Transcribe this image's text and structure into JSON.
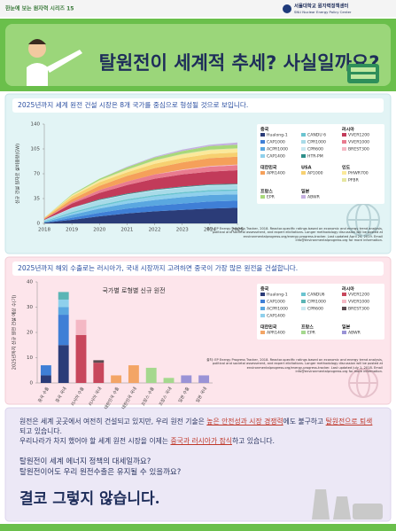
{
  "header": {
    "series": "한눈에 보는 원자력 시리즈 15",
    "org": "서울대학교 원자력정책센터",
    "org_en": "SNU Nuclear Energy Policy Center"
  },
  "title": "탈원전이 세계적 추세? 사실일까요?",
  "chart_data": [
    {
      "type": "area",
      "stacked": true,
      "headline": "2025년까지 세계 원전 건설 시장은 8개 국가를 중심으로 형성될 것으로 보입니다.",
      "ylabel": "신규 건설 원자로 설비용량(GW)",
      "x": [
        2018,
        2019,
        2020,
        2021,
        2022,
        2023,
        2024,
        2025
      ],
      "xlim": [
        2018,
        2025
      ],
      "xticks": [
        2018,
        2019,
        2020,
        2021,
        2022,
        2023,
        2024,
        2025
      ],
      "ylim": [
        0,
        140
      ],
      "yticks": [
        0,
        35,
        70,
        105,
        140
      ],
      "series": [
        {
          "name": "Hualong-1",
          "group": "중국",
          "color": "#2b3c78",
          "values": [
            1,
            5,
            10,
            14,
            17,
            19,
            21,
            22
          ]
        },
        {
          "name": "CAP1000",
          "group": "중국",
          "color": "#3f7fd6",
          "values": [
            0,
            3,
            5,
            7,
            8,
            9,
            10,
            10
          ]
        },
        {
          "name": "ACPR1000",
          "group": "중국",
          "color": "#5aa7e0",
          "values": [
            1,
            4,
            6,
            7,
            8,
            9,
            9,
            9
          ]
        },
        {
          "name": "CAP1400",
          "group": "중국",
          "color": "#8fd0ec",
          "values": [
            0,
            2,
            3,
            4,
            5,
            5,
            5,
            5
          ]
        },
        {
          "name": "CANDU 6",
          "group": "중국",
          "color": "#6bc4d0",
          "values": [
            1,
            2,
            2,
            2,
            2,
            2,
            2,
            2
          ]
        },
        {
          "name": "CPR1000",
          "group": "중국",
          "color": "#a8dbe8",
          "values": [
            2,
            5,
            6,
            6,
            6,
            6,
            6,
            6
          ]
        },
        {
          "name": "CPR600",
          "group": "중국",
          "color": "#c9e7f0",
          "values": [
            0,
            1,
            1,
            1,
            1,
            1,
            1,
            1
          ]
        },
        {
          "name": "HTR-PM",
          "group": "중국",
          "color": "#2e8f8a",
          "values": [
            0,
            0,
            1,
            1,
            1,
            1,
            1,
            1
          ]
        },
        {
          "name": "VVER1200",
          "group": "러시아",
          "color": "#c23b5a",
          "values": [
            1,
            6,
            9,
            12,
            15,
            17,
            18,
            19
          ]
        },
        {
          "name": "VVER1000",
          "group": "러시아",
          "color": "#e97b8f",
          "values": [
            0,
            2,
            4,
            5,
            6,
            6,
            7,
            7
          ]
        },
        {
          "name": "BREST300",
          "group": "러시아",
          "color": "#f4b8c4",
          "values": [
            0,
            0,
            0,
            0,
            0,
            1,
            1,
            1
          ]
        },
        {
          "name": "APR1400",
          "group": "대한민국",
          "color": "#f5a05a",
          "values": [
            1,
            4,
            6,
            8,
            9,
            10,
            11,
            11
          ]
        },
        {
          "name": "AP1000",
          "group": "USA",
          "color": "#f7d070",
          "values": [
            1,
            4,
            5,
            5,
            6,
            6,
            6,
            6
          ]
        },
        {
          "name": "PHWR700",
          "group": "인도",
          "color": "#fbe99a",
          "values": [
            0,
            1,
            2,
            3,
            4,
            5,
            5,
            5
          ]
        },
        {
          "name": "PFBR",
          "group": "인도",
          "color": "#e6e6a0",
          "values": [
            0,
            1,
            1,
            1,
            1,
            1,
            1,
            1
          ]
        },
        {
          "name": "EPR",
          "group": "프랑스",
          "color": "#a8d87a",
          "values": [
            0,
            1,
            2,
            3,
            4,
            4,
            5,
            5
          ]
        },
        {
          "name": "ABWR",
          "group": "일본",
          "color": "#c5b0e0",
          "values": [
            0,
            0,
            0,
            1,
            1,
            2,
            2,
            3
          ]
        }
      ],
      "source": "출처: EP Energy Progress Tracker, 2018. Reactor-specific ratings based on economic and energy trend analysis, political and societal assessment, and expert elicitations. Longer methodology discussion will be posted at environmentalprogress.org/energy-progress-tracker. Last updated April 24, 2019. Email info@environmentalprogress.org for more information."
    },
    {
      "type": "bar",
      "stacked": true,
      "headline": "2025년까지 해외 수출로는 러시아가, 국내 시장까지 고려하면 중국이 가장 많은 원전을 건설합니다.",
      "title": "국가별 로형별 신규 원전",
      "ylabel": "2025년까지 신규 원전 건설 예상 수(기)",
      "categories": [
        "중국 수출",
        "중국 국내",
        "러시아 수출",
        "러시아 국내",
        "대한민국 수출",
        "대한민국 국내",
        "프랑스 수출",
        "프랑스 국내",
        "일본 수출",
        "일본 국내"
      ],
      "ylim": [
        0,
        40
      ],
      "yticks": [
        0,
        10,
        20,
        30,
        40
      ],
      "series": [
        {
          "name": "Hualong-1",
          "group": "중국",
          "color": "#2b3c78",
          "values": [
            3,
            15,
            0,
            0,
            0,
            0,
            0,
            0,
            0,
            0
          ]
        },
        {
          "name": "CAP1000",
          "group": "중국",
          "color": "#3f7fd6",
          "values": [
            4,
            12,
            0,
            0,
            0,
            0,
            0,
            0,
            0,
            0
          ]
        },
        {
          "name": "ACPR1000",
          "group": "중국",
          "color": "#5aa7e0",
          "values": [
            0,
            3,
            0,
            0,
            0,
            0,
            0,
            0,
            0,
            0
          ]
        },
        {
          "name": "CAP1400",
          "group": "중국",
          "color": "#8fd0ec",
          "values": [
            0,
            3,
            0,
            0,
            0,
            0,
            0,
            0,
            0,
            0
          ]
        },
        {
          "name": "CANDU6",
          "group": "중국",
          "color": "#6bc4d0",
          "values": [
            0,
            0,
            0,
            0,
            0,
            0,
            0,
            0,
            0,
            0
          ]
        },
        {
          "name": "CPR1000",
          "group": "중국",
          "color": "#5bb5b5",
          "values": [
            0,
            3,
            0,
            0,
            0,
            0,
            0,
            0,
            0,
            0
          ]
        },
        {
          "name": "CPR600",
          "group": "중국",
          "color": "#c9e7f0",
          "values": [
            0,
            0,
            0,
            0,
            0,
            0,
            0,
            0,
            0,
            0
          ]
        },
        {
          "name": "VVER1200",
          "group": "러시아",
          "color": "#c8475c",
          "values": [
            0,
            0,
            19,
            8,
            0,
            0,
            0,
            0,
            0,
            0
          ]
        },
        {
          "name": "VVER1000",
          "group": "러시아",
          "color": "#f4b8c4",
          "values": [
            0,
            0,
            6,
            0,
            0,
            0,
            0,
            0,
            0,
            0
          ]
        },
        {
          "name": "BREST300",
          "group": "러시아",
          "color": "#5b4b50",
          "values": [
            0,
            0,
            0,
            1,
            0,
            0,
            0,
            0,
            0,
            0
          ]
        },
        {
          "name": "APR1400",
          "group": "대한민국",
          "color": "#f3a566",
          "values": [
            0,
            0,
            0,
            0,
            3,
            7,
            0,
            0,
            0,
            0
          ]
        },
        {
          "name": "EPR",
          "group": "프랑스",
          "color": "#a5d88e",
          "values": [
            0,
            0,
            0,
            0,
            0,
            0,
            6,
            2,
            0,
            0
          ]
        },
        {
          "name": "ABWR",
          "group": "일본",
          "color": "#9a93d6",
          "values": [
            0,
            0,
            0,
            0,
            0,
            0,
            0,
            0,
            3,
            3
          ]
        }
      ],
      "source": "출처: EP Energy Progress Tracker, 2018. Reactor-specific ratings based on economic and energy trend analysis, political and societal assessment, and expert elicitations. Longer methodology discussion will be posted at environmentalprogress.org/energy-progress-tracker. Last updated July 1, 2018. Email info@environmentalprogress.org for more information."
    }
  ],
  "conclusion": {
    "p1": [
      "원전은 세계 곳곳에서 여전히 건설되고 있지만, 우리 원전 기술은 ",
      "높은 안전성과 시장 경쟁력",
      "에도 불구하고 ",
      "탈원전으로 퇴색",
      "되고 있습니다."
    ],
    "p2": [
      "우리나라가 차지 했어야 할 세계 원전 시장을 이제는 ",
      "중국과 러시아가 잠식",
      "하고 있습니다."
    ],
    "questions": [
      "탈원전이 세계 에너지 정책의 대세일까요?",
      "탈원전이어도 우리 원전수출은 유지될 수 있을까요?"
    ],
    "answer": "결코 그렇지 않습니다."
  }
}
